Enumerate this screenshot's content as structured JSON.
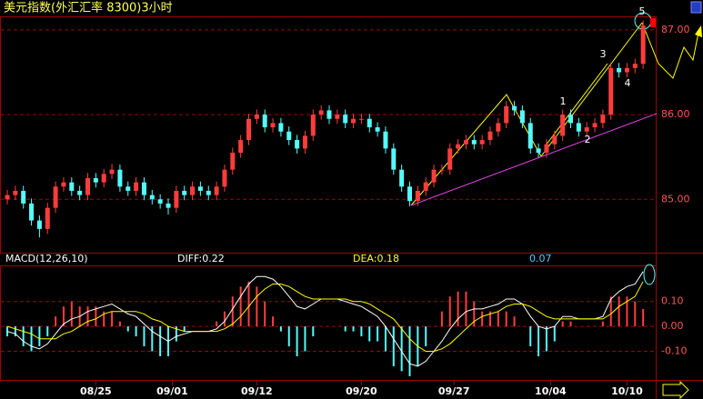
{
  "chart_data": [
    {
      "type": "candlestick",
      "title": "美元指数(外汇汇率 8300)3小时",
      "up_color": "#ff3c3c",
      "down_color": "#54fcfc",
      "open": [
        85.0,
        85.05,
        85.1,
        84.95,
        84.75,
        84.65,
        84.9,
        85.15,
        85.2,
        85.1,
        85.05,
        85.25,
        85.2,
        85.3,
        85.35,
        85.15,
        85.1,
        85.2,
        85.05,
        85.0,
        84.95,
        84.9,
        85.1,
        85.05,
        85.15,
        85.1,
        85.05,
        85.15,
        85.35,
        85.55,
        85.7,
        85.95,
        86.0,
        85.85,
        85.9,
        85.8,
        85.7,
        85.6,
        85.75,
        86.0,
        86.05,
        85.95,
        86.0,
        85.9,
        85.95,
        85.95,
        85.85,
        85.8,
        85.6,
        85.35,
        85.15,
        84.98,
        85.1,
        85.2,
        85.35,
        85.35,
        85.6,
        85.65,
        85.7,
        85.65,
        85.7,
        85.8,
        85.9,
        86.1,
        86.05,
        85.9,
        85.6,
        85.55,
        85.65,
        85.75,
        86.0,
        85.9,
        85.8,
        85.85,
        85.9,
        86.0,
        86.55,
        86.5,
        86.55,
        86.6
      ],
      "high": [
        85.11,
        85.16,
        85.16,
        85.01,
        84.81,
        84.96,
        85.21,
        85.26,
        85.26,
        85.16,
        85.31,
        85.31,
        85.36,
        85.42,
        85.41,
        85.21,
        85.26,
        85.26,
        85.11,
        85.06,
        85.01,
        85.16,
        85.16,
        85.21,
        85.21,
        85.16,
        85.21,
        85.41,
        85.61,
        85.76,
        86.01,
        86.06,
        86.06,
        85.96,
        85.96,
        85.86,
        85.76,
        85.81,
        86.06,
        86.11,
        86.11,
        86.06,
        86.06,
        86.01,
        86.01,
        86.01,
        85.91,
        85.86,
        85.66,
        85.41,
        85.21,
        85.16,
        85.26,
        85.41,
        85.41,
        85.66,
        85.71,
        85.76,
        85.76,
        85.76,
        85.86,
        85.96,
        86.16,
        86.16,
        86.11,
        85.96,
        85.66,
        85.71,
        85.81,
        86.06,
        86.06,
        85.96,
        85.91,
        85.96,
        86.06,
        86.61,
        86.61,
        86.61,
        86.66,
        87.11
      ],
      "low": [
        84.94,
        84.99,
        84.89,
        84.69,
        84.55,
        84.59,
        84.84,
        85.09,
        85.04,
        84.99,
        84.99,
        85.14,
        85.14,
        85.24,
        85.09,
        85.04,
        85.04,
        84.99,
        84.94,
        84.89,
        84.82,
        84.84,
        84.99,
        84.99,
        85.04,
        84.99,
        84.99,
        85.09,
        85.29,
        85.49,
        85.64,
        85.89,
        85.79,
        85.79,
        85.74,
        85.64,
        85.54,
        85.54,
        85.69,
        85.94,
        85.89,
        85.89,
        85.84,
        85.84,
        85.89,
        85.79,
        85.74,
        85.54,
        85.29,
        85.09,
        84.92,
        84.92,
        85.04,
        85.14,
        85.29,
        85.29,
        85.54,
        85.59,
        85.59,
        85.59,
        85.64,
        85.74,
        85.84,
        85.99,
        85.84,
        85.54,
        85.49,
        85.49,
        85.59,
        85.69,
        85.84,
        85.74,
        85.74,
        85.79,
        85.84,
        85.94,
        86.44,
        86.44,
        86.49,
        86.54
      ],
      "close": [
        85.05,
        85.1,
        84.95,
        84.75,
        84.65,
        84.9,
        85.15,
        85.2,
        85.1,
        85.05,
        85.25,
        85.2,
        85.3,
        85.35,
        85.15,
        85.1,
        85.2,
        85.05,
        85.0,
        84.95,
        84.9,
        85.1,
        85.05,
        85.15,
        85.1,
        85.05,
        85.15,
        85.35,
        85.55,
        85.7,
        85.95,
        86.0,
        85.85,
        85.9,
        85.8,
        85.7,
        85.6,
        85.75,
        86.0,
        86.05,
        85.95,
        86.0,
        85.9,
        85.95,
        85.95,
        85.85,
        85.8,
        85.6,
        85.35,
        85.15,
        84.98,
        85.1,
        85.2,
        85.35,
        85.35,
        85.6,
        85.65,
        85.7,
        85.65,
        85.7,
        85.8,
        85.9,
        86.1,
        86.05,
        85.9,
        85.6,
        85.55,
        85.65,
        85.75,
        86.0,
        85.9,
        85.8,
        85.85,
        85.9,
        86.0,
        86.55,
        86.5,
        86.55,
        86.6,
        87.05
      ],
      "ylim": [
        84.37,
        87.16
      ],
      "yticks": [
        {
          "value": 85,
          "label": "85.00"
        },
        {
          "value": 86,
          "label": "86.00"
        },
        {
          "value": 87,
          "label": "87.00"
        }
      ],
      "xticks": [
        {
          "value": 11,
          "label": "08/25"
        },
        {
          "value": 20.5,
          "label": "09/01"
        },
        {
          "value": 31,
          "label": "09/12"
        },
        {
          "value": 44,
          "label": "09/20"
        },
        {
          "value": 55.5,
          "label": "09/27"
        },
        {
          "value": 67.5,
          "label": "10/04"
        },
        {
          "value": 77,
          "label": "10/10"
        }
      ],
      "annotations": [
        "1",
        "2",
        "3",
        "4",
        "5"
      ],
      "grid": true
    },
    {
      "type": "macd",
      "title": "MACD(12,26,10)",
      "labels": [
        "DIFF:0.22",
        "DEA:0.18",
        "0.07"
      ],
      "diff_color": "#ffffff",
      "dea_color": "#ffff00",
      "up_color": "#ff3c3c",
      "down_color": "#54fcfc",
      "histogram": [
        -0.04,
        -0.04,
        -0.08,
        -0.1,
        -0.08,
        -0.04,
        0.04,
        0.08,
        0.1,
        0.08,
        0.08,
        0.08,
        0.06,
        0.06,
        0.02,
        -0.02,
        -0.04,
        -0.08,
        -0.1,
        -0.12,
        -0.12,
        -0.06,
        -0.02,
        0.0,
        0.0,
        0.0,
        0.02,
        0.06,
        0.12,
        0.16,
        0.18,
        0.16,
        0.1,
        0.04,
        -0.02,
        -0.08,
        -0.12,
        -0.1,
        -0.04,
        0.0,
        0.0,
        0.0,
        -0.02,
        -0.02,
        -0.04,
        -0.06,
        -0.06,
        -0.1,
        -0.16,
        -0.18,
        -0.2,
        -0.16,
        -0.08,
        0.0,
        0.06,
        0.12,
        0.14,
        0.14,
        0.1,
        0.06,
        0.06,
        0.06,
        0.06,
        0.04,
        0.0,
        -0.08,
        -0.12,
        -0.1,
        -0.06,
        0.02,
        0.02,
        0.0,
        0.0,
        0.0,
        0.02,
        0.12,
        0.12,
        0.12,
        0.1,
        0.07
      ],
      "diff": [
        -0.02,
        -0.03,
        -0.06,
        -0.08,
        -0.09,
        -0.07,
        -0.03,
        0.01,
        0.03,
        0.04,
        0.06,
        0.07,
        0.08,
        0.09,
        0.07,
        0.05,
        0.04,
        0.01,
        -0.02,
        -0.04,
        -0.06,
        -0.04,
        -0.03,
        -0.02,
        -0.02,
        -0.02,
        -0.01,
        0.02,
        0.07,
        0.12,
        0.17,
        0.2,
        0.2,
        0.19,
        0.16,
        0.12,
        0.08,
        0.07,
        0.09,
        0.11,
        0.11,
        0.11,
        0.1,
        0.09,
        0.08,
        0.06,
        0.04,
        0.0,
        -0.05,
        -0.1,
        -0.15,
        -0.16,
        -0.14,
        -0.1,
        -0.06,
        -0.01,
        0.03,
        0.06,
        0.07,
        0.07,
        0.08,
        0.09,
        0.11,
        0.11,
        0.09,
        0.04,
        0.0,
        -0.01,
        0.0,
        0.04,
        0.04,
        0.03,
        0.03,
        0.03,
        0.04,
        0.11,
        0.14,
        0.16,
        0.17,
        0.22
      ],
      "dea": [
        0.0,
        -0.01,
        -0.02,
        -0.03,
        -0.05,
        -0.05,
        -0.05,
        -0.03,
        -0.02,
        0.0,
        0.02,
        0.03,
        0.05,
        0.06,
        0.06,
        0.06,
        0.06,
        0.05,
        0.03,
        0.02,
        0.0,
        -0.01,
        -0.02,
        -0.02,
        -0.02,
        -0.02,
        -0.02,
        -0.01,
        0.01,
        0.04,
        0.08,
        0.12,
        0.15,
        0.17,
        0.17,
        0.16,
        0.14,
        0.12,
        0.11,
        0.11,
        0.11,
        0.11,
        0.11,
        0.1,
        0.1,
        0.09,
        0.07,
        0.05,
        0.03,
        -0.01,
        -0.05,
        -0.08,
        -0.1,
        -0.1,
        -0.09,
        -0.07,
        -0.04,
        -0.01,
        0.02,
        0.04,
        0.05,
        0.06,
        0.08,
        0.09,
        0.09,
        0.08,
        0.06,
        0.04,
        0.03,
        0.03,
        0.03,
        0.03,
        0.03,
        0.03,
        0.03,
        0.05,
        0.08,
        0.1,
        0.12,
        0.18
      ],
      "ylim": [
        -0.215,
        0.245
      ],
      "yticks": [
        {
          "value": -0.1,
          "label": "-0.10"
        },
        {
          "value": 0,
          "label": "0.00"
        },
        {
          "value": 0.1,
          "label": "0.10"
        }
      ],
      "grid": true
    }
  ]
}
